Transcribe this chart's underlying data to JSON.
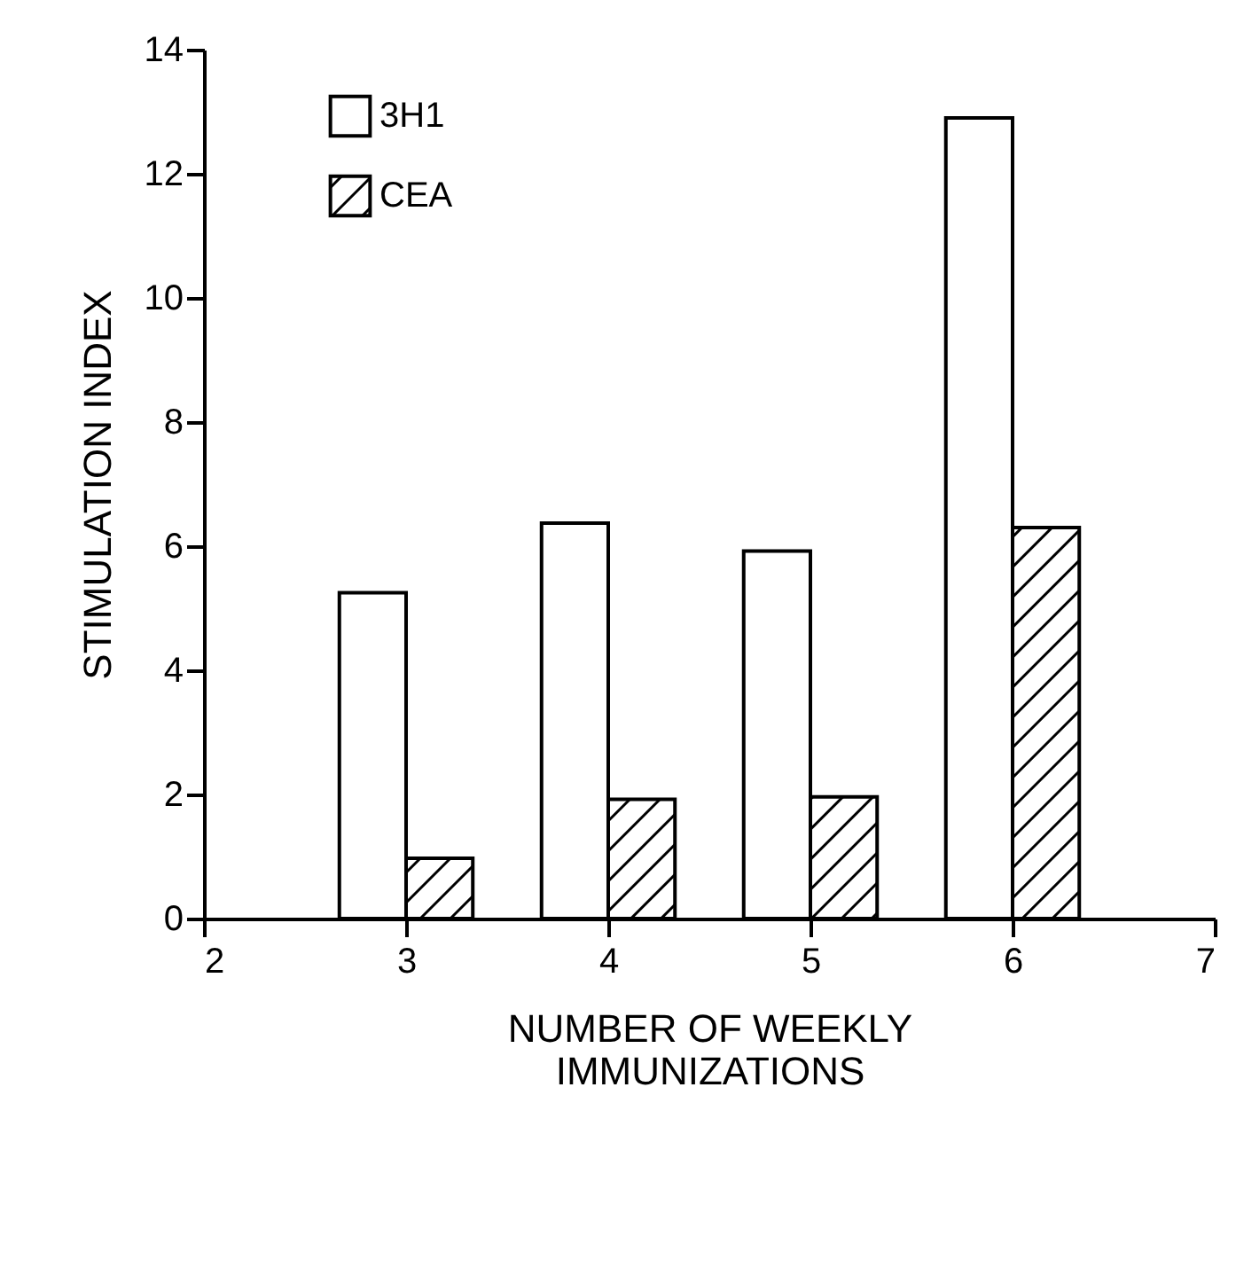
{
  "chart_data": {
    "type": "bar",
    "xlabel": "NUMBER OF WEEKLY IMMUNIZATIONS",
    "ylabel": "STIMULATION INDEX",
    "x": [
      3,
      4,
      5,
      6
    ],
    "series": [
      {
        "name": "3H1",
        "color": "#ffffff",
        "values": [
          5.25,
          6.37,
          5.92,
          12.9
        ]
      },
      {
        "name": "CEA",
        "color": "#000000",
        "values": [
          0.97,
          1.92,
          1.96,
          6.3
        ]
      }
    ],
    "xlim": [
      2,
      7
    ],
    "xticks": [
      2,
      3,
      4,
      5,
      6,
      7
    ],
    "ylim": [
      0,
      14
    ],
    "yticks": [
      0,
      2,
      4,
      6,
      8,
      10,
      12,
      14
    ],
    "grid": false,
    "legend": "top left"
  }
}
